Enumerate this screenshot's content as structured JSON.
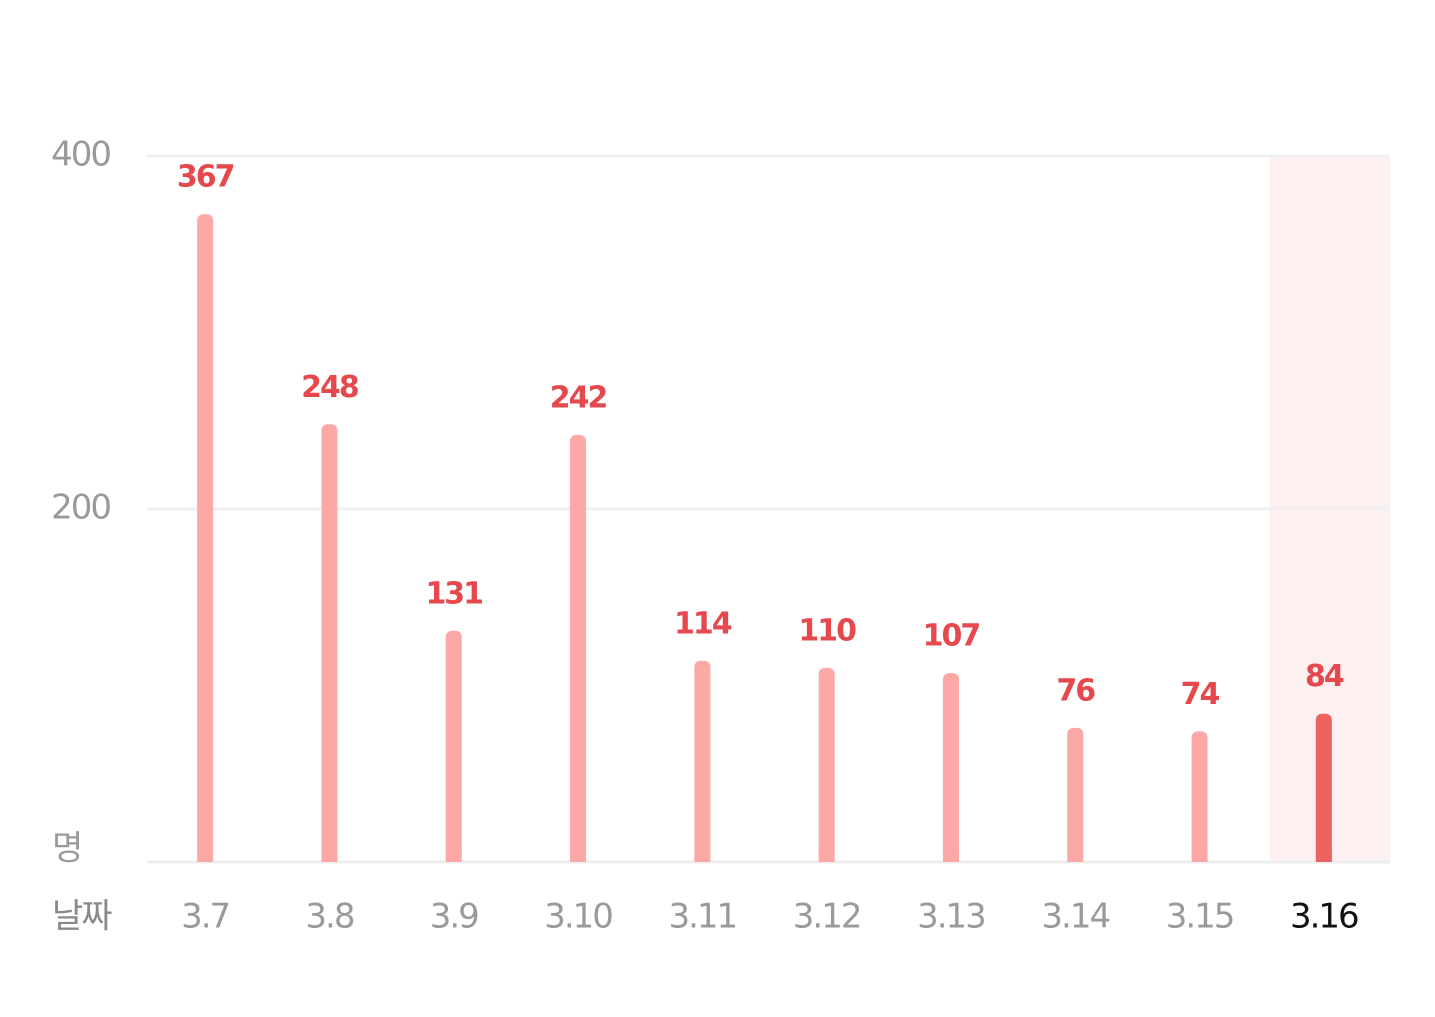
{
  "chart_data": {
    "type": "bar",
    "x_label": "날짜",
    "y_label": "명",
    "categories": [
      "3.7",
      "3.8",
      "3.9",
      "3.10",
      "3.11",
      "3.12",
      "3.13",
      "3.14",
      "3.15",
      "3.16"
    ],
    "values": [
      367,
      248,
      131,
      242,
      114,
      110,
      107,
      76,
      74,
      84
    ],
    "color": "#fba8a6",
    "highlight_color": "#ee6161",
    "highlight_band_color": "#fcf1f0",
    "highlight_index": 9,
    "label_color": "#e5484d",
    "ylim": [
      0,
      400
    ],
    "yticks": [
      200,
      400
    ],
    "grid": true
  }
}
